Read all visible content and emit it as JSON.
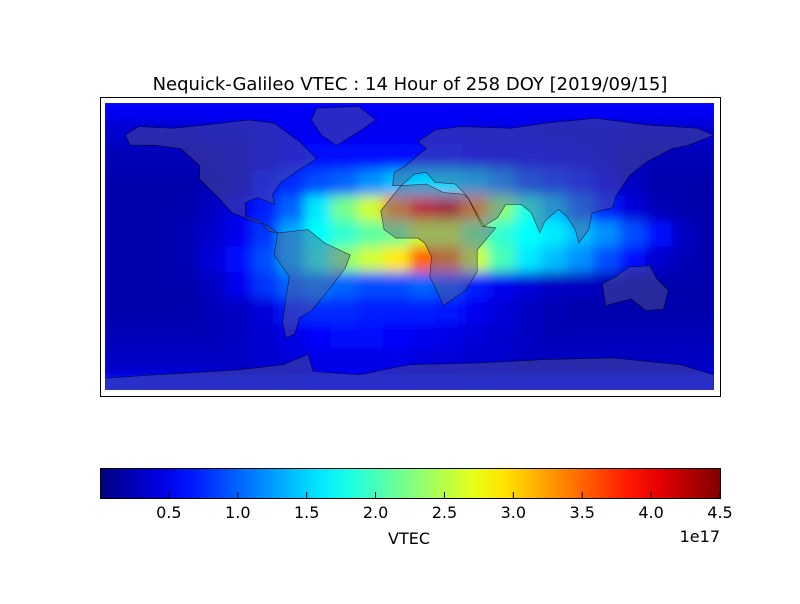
{
  "chart_data": {
    "type": "heatmap",
    "title": "Nequick-Galileo VTEC : 14 Hour of 258 DOY [2019/09/15]",
    "colormap": "jet",
    "colorbar": {
      "label": "VTEC",
      "offset_label": "1e17",
      "range": [
        0,
        4.5
      ],
      "ticks": [
        0.5,
        1.0,
        1.5,
        2.0,
        2.5,
        3.0,
        3.5,
        4.0,
        4.5
      ],
      "tick_labels": [
        "0.5",
        "1.0",
        "1.5",
        "2.0",
        "2.5",
        "3.0",
        "3.5",
        "4.0",
        "4.5"
      ]
    },
    "units_scale": 1e+17,
    "lon_centers": [
      -172.5,
      -157.5,
      -142.5,
      -127.5,
      -112.5,
      -97.5,
      -82.5,
      -67.5,
      -52.5,
      -37.5,
      -22.5,
      -7.5,
      7.5,
      22.5,
      37.5,
      52.5,
      67.5,
      82.5,
      97.5,
      112.5,
      127.5,
      142.5,
      157.5,
      172.5
    ],
    "lat_centers": [
      78,
      64,
      50,
      36,
      21,
      7,
      -7,
      -21,
      -36,
      -50,
      -64,
      -78
    ],
    "values": [
      [
        0.55,
        0.55,
        0.55,
        0.55,
        0.55,
        0.55,
        0.55,
        0.55,
        0.55,
        0.55,
        0.55,
        0.55,
        0.55,
        0.55,
        0.55,
        0.55,
        0.55,
        0.55,
        0.55,
        0.55,
        0.55,
        0.55,
        0.55,
        0.55
      ],
      [
        0.35,
        0.35,
        0.35,
        0.35,
        0.4,
        0.4,
        0.45,
        0.5,
        0.5,
        0.5,
        0.5,
        0.5,
        0.5,
        0.5,
        0.45,
        0.45,
        0.45,
        0.4,
        0.4,
        0.4,
        0.35,
        0.35,
        0.35,
        0.35
      ],
      [
        0.25,
        0.25,
        0.25,
        0.25,
        0.3,
        0.35,
        0.45,
        0.55,
        0.6,
        0.6,
        0.6,
        0.6,
        0.6,
        0.6,
        0.55,
        0.5,
        0.5,
        0.5,
        0.45,
        0.4,
        0.3,
        0.25,
        0.25,
        0.25
      ],
      [
        0.2,
        0.2,
        0.2,
        0.2,
        0.25,
        0.35,
        0.6,
        0.75,
        0.9,
        1.0,
        1.2,
        1.4,
        1.5,
        1.5,
        1.4,
        1.2,
        0.9,
        0.8,
        0.7,
        0.5,
        0.3,
        0.2,
        0.2,
        0.2
      ],
      [
        0.2,
        0.2,
        0.2,
        0.2,
        0.3,
        0.45,
        0.7,
        1.0,
        1.6,
        2.2,
        2.6,
        3.3,
        3.9,
        4.1,
        3.3,
        2.3,
        1.8,
        1.4,
        1.0,
        0.7,
        0.4,
        0.25,
        0.2,
        0.2
      ],
      [
        0.2,
        0.2,
        0.2,
        0.25,
        0.35,
        0.5,
        0.8,
        1.3,
        1.7,
        1.9,
        2.1,
        2.2,
        2.6,
        2.6,
        2.2,
        1.9,
        1.7,
        1.6,
        1.4,
        1.2,
        0.9,
        0.6,
        0.3,
        0.2
      ],
      [
        0.2,
        0.2,
        0.2,
        0.25,
        0.4,
        0.6,
        0.9,
        1.3,
        1.8,
        2.3,
        2.6,
        2.9,
        3.5,
        3.4,
        2.6,
        2.0,
        1.6,
        1.4,
        1.2,
        0.9,
        0.6,
        0.35,
        0.25,
        0.2
      ],
      [
        0.2,
        0.2,
        0.2,
        0.2,
        0.3,
        0.5,
        0.8,
        1.0,
        1.1,
        1.0,
        0.9,
        0.9,
        1.0,
        0.9,
        0.7,
        0.5,
        0.4,
        0.3,
        0.3,
        0.25,
        0.2,
        0.2,
        0.2,
        0.2
      ],
      [
        0.2,
        0.2,
        0.2,
        0.2,
        0.25,
        0.3,
        0.4,
        0.7,
        0.75,
        0.75,
        0.7,
        0.7,
        0.7,
        0.65,
        0.5,
        0.4,
        0.3,
        0.25,
        0.2,
        0.2,
        0.2,
        0.2,
        0.2,
        0.2
      ],
      [
        0.25,
        0.25,
        0.25,
        0.25,
        0.25,
        0.3,
        0.35,
        0.45,
        0.55,
        0.6,
        0.6,
        0.55,
        0.5,
        0.45,
        0.4,
        0.35,
        0.3,
        0.25,
        0.25,
        0.25,
        0.25,
        0.25,
        0.25,
        0.25
      ],
      [
        0.3,
        0.3,
        0.3,
        0.3,
        0.3,
        0.3,
        0.35,
        0.4,
        0.45,
        0.45,
        0.45,
        0.45,
        0.4,
        0.4,
        0.35,
        0.35,
        0.3,
        0.3,
        0.3,
        0.3,
        0.3,
        0.3,
        0.3,
        0.3
      ],
      [
        0.6,
        0.6,
        0.6,
        0.6,
        0.6,
        0.6,
        0.6,
        0.6,
        0.6,
        0.6,
        0.6,
        0.6,
        0.6,
        0.6,
        0.6,
        0.6,
        0.6,
        0.6,
        0.6,
        0.6,
        0.6,
        0.6,
        0.6,
        0.6
      ]
    ]
  }
}
